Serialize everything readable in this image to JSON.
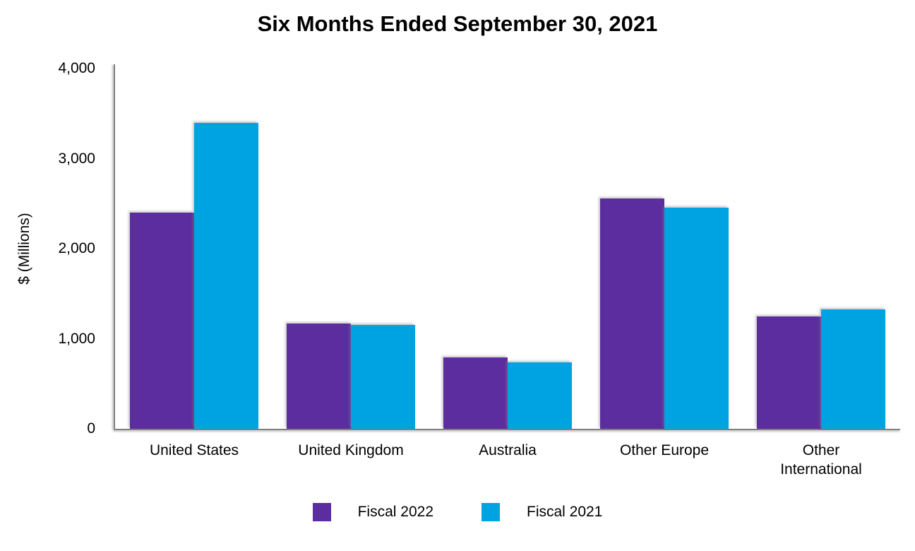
{
  "chart_data": {
    "type": "bar",
    "title": "Six Months Ended September 30, 2021",
    "xlabel": "",
    "ylabel": "$ (Millions)",
    "categories": [
      "United States",
      "United Kingdom",
      "Australia",
      "Other Europe",
      "Other International"
    ],
    "category_lines": [
      [
        "United States"
      ],
      [
        "United Kingdom"
      ],
      [
        "Australia"
      ],
      [
        "Other Europe"
      ],
      [
        "Other",
        "International"
      ]
    ],
    "series": [
      {
        "name": "Fiscal 2022",
        "color": "#5C2D9E",
        "values": [
          2400,
          1170,
          790,
          2560,
          1245
        ]
      },
      {
        "name": "Fiscal 2021",
        "color": "#00A3E1",
        "values": [
          3400,
          1150,
          740,
          2455,
          1325
        ]
      }
    ],
    "ylim": [
      0,
      4000
    ],
    "yticks": [
      0,
      1000,
      2000,
      3000,
      4000
    ],
    "ytick_labels": [
      "0",
      "1,000",
      "2,000",
      "3,000",
      "4,000"
    ],
    "grid": false,
    "legend_position": "bottom",
    "axis_color": "#7f7f7f",
    "text_color": "#000000",
    "background_color": "#ffffff"
  }
}
